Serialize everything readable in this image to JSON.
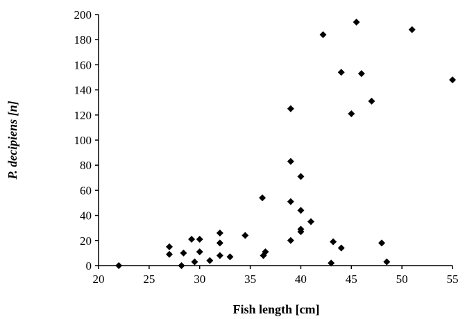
{
  "chart_data": {
    "type": "scatter",
    "xlabel": "Fish length [cm]",
    "ylabel": "P. decipiens [n]",
    "x": [
      22,
      27,
      27,
      28.2,
      28.4,
      29.2,
      29.5,
      30,
      30,
      31,
      32,
      32,
      32,
      33,
      34.5,
      36.2,
      36.3,
      36.5,
      39,
      39,
      39,
      39,
      40,
      40,
      40,
      40,
      41,
      42.2,
      43,
      43.2,
      44,
      44,
      45,
      45.5,
      46,
      47,
      48,
      48.5,
      51,
      55
    ],
    "values": [
      0,
      15,
      9,
      0,
      10,
      21,
      3,
      21,
      11,
      4,
      26,
      18,
      8,
      7,
      24,
      54,
      8,
      11,
      125,
      83,
      51,
      20,
      71,
      44,
      29,
      27,
      35,
      184,
      2,
      19,
      154,
      14,
      121,
      194,
      153,
      131,
      18,
      3,
      188,
      148
    ],
    "color": "#000000",
    "xlim": [
      20,
      55
    ],
    "xticks": [
      20,
      25,
      30,
      35,
      40,
      45,
      50,
      55
    ],
    "ylim": [
      0,
      200
    ],
    "yticks": [
      0,
      20,
      40,
      60,
      80,
      100,
      120,
      140,
      160,
      180,
      200
    ]
  }
}
